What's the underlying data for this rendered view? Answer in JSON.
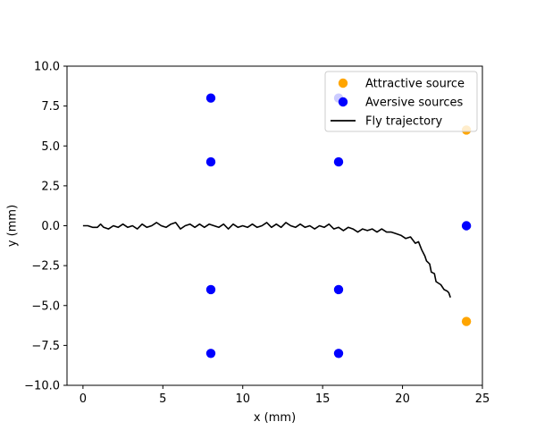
{
  "chart_data": {
    "type": "scatter",
    "title": "",
    "xlabel": "x (mm)",
    "ylabel": "y (mm)",
    "xlim": [
      -1,
      25
    ],
    "ylim": [
      -10,
      10
    ],
    "x_ticks": [
      0,
      5,
      10,
      15,
      20,
      25
    ],
    "x_tick_labels": [
      "0",
      "5",
      "10",
      "15",
      "20",
      "25"
    ],
    "y_ticks": [
      -10,
      -7.5,
      -5,
      -2.5,
      0,
      2.5,
      5,
      7.5,
      10
    ],
    "y_tick_labels": [
      "−10.0",
      "−7.5",
      "−5.0",
      "−2.5",
      "0.0",
      "2.5",
      "5.0",
      "7.5",
      "10.0"
    ],
    "grid": false,
    "legend_position": "top-right",
    "series": [
      {
        "name": "Attractive source",
        "kind": "scatter",
        "color": "#ffa500",
        "points": [
          [
            24,
            6
          ],
          [
            24,
            -6
          ]
        ]
      },
      {
        "name": "Aversive sources",
        "kind": "scatter",
        "color": "#0000ff",
        "points": [
          [
            8,
            8
          ],
          [
            8,
            4
          ],
          [
            8,
            -4
          ],
          [
            8,
            -8
          ],
          [
            16,
            8
          ],
          [
            16,
            4
          ],
          [
            16,
            -4
          ],
          [
            16,
            -8
          ],
          [
            24,
            0
          ]
        ]
      },
      {
        "name": "Fly trajectory",
        "kind": "line",
        "color": "#000000",
        "points": [
          [
            0.0,
            0.0
          ],
          [
            0.3,
            0.0
          ],
          [
            0.6,
            -0.1
          ],
          [
            0.9,
            -0.1
          ],
          [
            1.1,
            0.1
          ],
          [
            1.3,
            -0.1
          ],
          [
            1.6,
            -0.2
          ],
          [
            1.9,
            0.0
          ],
          [
            2.2,
            -0.1
          ],
          [
            2.5,
            0.1
          ],
          [
            2.8,
            -0.1
          ],
          [
            3.1,
            0.0
          ],
          [
            3.4,
            -0.2
          ],
          [
            3.7,
            0.1
          ],
          [
            4.0,
            -0.1
          ],
          [
            4.3,
            0.0
          ],
          [
            4.6,
            0.2
          ],
          [
            4.9,
            0.0
          ],
          [
            5.2,
            -0.1
          ],
          [
            5.5,
            0.1
          ],
          [
            5.8,
            0.2
          ],
          [
            6.1,
            -0.2
          ],
          [
            6.4,
            0.0
          ],
          [
            6.7,
            0.1
          ],
          [
            7.0,
            -0.1
          ],
          [
            7.3,
            0.1
          ],
          [
            7.6,
            -0.1
          ],
          [
            7.9,
            0.1
          ],
          [
            8.2,
            0.0
          ],
          [
            8.5,
            -0.1
          ],
          [
            8.8,
            0.1
          ],
          [
            9.1,
            -0.2
          ],
          [
            9.4,
            0.1
          ],
          [
            9.7,
            -0.1
          ],
          [
            10.0,
            0.0
          ],
          [
            10.3,
            -0.1
          ],
          [
            10.6,
            0.1
          ],
          [
            10.9,
            -0.1
          ],
          [
            11.2,
            0.0
          ],
          [
            11.5,
            0.2
          ],
          [
            11.8,
            -0.1
          ],
          [
            12.1,
            0.1
          ],
          [
            12.4,
            -0.1
          ],
          [
            12.7,
            0.2
          ],
          [
            13.0,
            0.0
          ],
          [
            13.3,
            -0.1
          ],
          [
            13.6,
            0.1
          ],
          [
            13.9,
            -0.1
          ],
          [
            14.2,
            0.0
          ],
          [
            14.5,
            -0.2
          ],
          [
            14.8,
            0.0
          ],
          [
            15.1,
            -0.1
          ],
          [
            15.4,
            0.1
          ],
          [
            15.7,
            -0.2
          ],
          [
            16.0,
            -0.1
          ],
          [
            16.3,
            -0.3
          ],
          [
            16.6,
            -0.1
          ],
          [
            16.9,
            -0.2
          ],
          [
            17.2,
            -0.4
          ],
          [
            17.5,
            -0.2
          ],
          [
            17.8,
            -0.3
          ],
          [
            18.1,
            -0.2
          ],
          [
            18.4,
            -0.4
          ],
          [
            18.7,
            -0.2
          ],
          [
            19.0,
            -0.4
          ],
          [
            19.3,
            -0.4
          ],
          [
            19.6,
            -0.5
          ],
          [
            19.9,
            -0.6
          ],
          [
            20.2,
            -0.8
          ],
          [
            20.5,
            -0.7
          ],
          [
            20.8,
            -1.1
          ],
          [
            21.0,
            -1.0
          ],
          [
            21.2,
            -1.5
          ],
          [
            21.4,
            -1.9
          ],
          [
            21.5,
            -2.2
          ],
          [
            21.7,
            -2.4
          ],
          [
            21.8,
            -2.9
          ],
          [
            22.0,
            -3.0
          ],
          [
            22.1,
            -3.5
          ],
          [
            22.4,
            -3.7
          ],
          [
            22.6,
            -4.0
          ],
          [
            22.8,
            -4.1
          ],
          [
            22.9,
            -4.2
          ],
          [
            23.0,
            -4.5
          ]
        ]
      }
    ]
  }
}
